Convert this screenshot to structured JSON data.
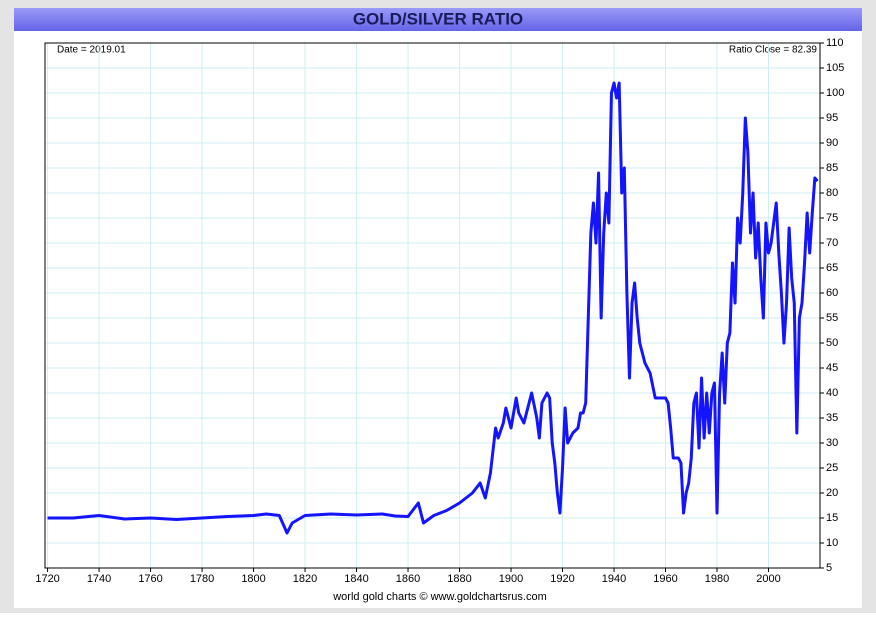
{
  "chart_data": {
    "type": "line",
    "title": "GOLD/SILVER RATIO",
    "annotations": [
      "Date = 2019.01",
      "Ratio Close = 82.39"
    ],
    "source": "world gold charts © www.goldchartsrus.com",
    "color": "#1414ff",
    "grid": true,
    "xlim": [
      1719,
      2020
    ],
    "ylim": [
      5,
      110
    ],
    "xticks": [
      1720,
      1740,
      1760,
      1780,
      1800,
      1820,
      1840,
      1860,
      1880,
      1900,
      1920,
      1940,
      1960,
      1980,
      2000
    ],
    "yticks": [
      5,
      10,
      15,
      20,
      25,
      30,
      35,
      40,
      45,
      50,
      55,
      60,
      65,
      70,
      75,
      80,
      85,
      90,
      95,
      100,
      105,
      110
    ],
    "x": [
      1720,
      1730,
      1740,
      1750,
      1760,
      1770,
      1780,
      1790,
      1800,
      1805,
      1810,
      1813,
      1815,
      1820,
      1830,
      1840,
      1850,
      1855,
      1860,
      1864,
      1866,
      1870,
      1875,
      1880,
      1885,
      1888,
      1890,
      1892,
      1894,
      1895,
      1897,
      1898,
      1900,
      1902,
      1903,
      1905,
      1908,
      1910,
      1911,
      1912,
      1914,
      1915,
      1916,
      1917,
      1918,
      1919,
      1920,
      1921,
      1922,
      1924,
      1926,
      1927,
      1928,
      1929,
      1930,
      1931,
      1932,
      1933,
      1934,
      1935,
      1936,
      1937,
      1938,
      1939,
      1940,
      1941,
      1942,
      1943,
      1944,
      1945,
      1946,
      1947,
      1948,
      1949,
      1950,
      1952,
      1954,
      1956,
      1958,
      1960,
      1961,
      1962,
      1963,
      1965,
      1966,
      1967,
      1968,
      1969,
      1970,
      1971,
      1972,
      1973,
      1974,
      1975,
      1976,
      1977,
      1978,
      1979,
      1980,
      1981,
      1982,
      1983,
      1984,
      1985,
      1986,
      1987,
      1988,
      1989,
      1990,
      1991,
      1992,
      1993,
      1994,
      1995,
      1996,
      1997,
      1998,
      1999,
      2000,
      2001,
      2002,
      2003,
      2004,
      2005,
      2006,
      2007,
      2008,
      2009,
      2010,
      2011,
      2012,
      2013,
      2014,
      2015,
      2016,
      2017,
      2018,
      2019
    ],
    "values": [
      15,
      15,
      15.5,
      14.8,
      15,
      14.7,
      15,
      15.3,
      15.5,
      15.8,
      15.5,
      12,
      14,
      15.5,
      15.8,
      15.6,
      15.8,
      15.4,
      15.3,
      18,
      14,
      15.5,
      16.5,
      18,
      20,
      22,
      19,
      24,
      33,
      31,
      34,
      37,
      33,
      39,
      36,
      34,
      40,
      35,
      31,
      38,
      40,
      39,
      30,
      26,
      20,
      16,
      25,
      37,
      30,
      32,
      33,
      36,
      36,
      38,
      55,
      72,
      78,
      70,
      84,
      55,
      72,
      80,
      74,
      100,
      102,
      99,
      102,
      80,
      85,
      60,
      43,
      58,
      62,
      55,
      50,
      46,
      44,
      39,
      39,
      39,
      38,
      33,
      27,
      27,
      26,
      16,
      20,
      22,
      27,
      38,
      40,
      29,
      43,
      31,
      40,
      32,
      40,
      42,
      16,
      40,
      48,
      38,
      50,
      52,
      66,
      58,
      75,
      70,
      80,
      95,
      88,
      72,
      80,
      67,
      74,
      63,
      55,
      74,
      68,
      70,
      74,
      78,
      68,
      60,
      50,
      58,
      73,
      63,
      58,
      32,
      55,
      58,
      66,
      76,
      68,
      76,
      83,
      82.39
    ]
  }
}
